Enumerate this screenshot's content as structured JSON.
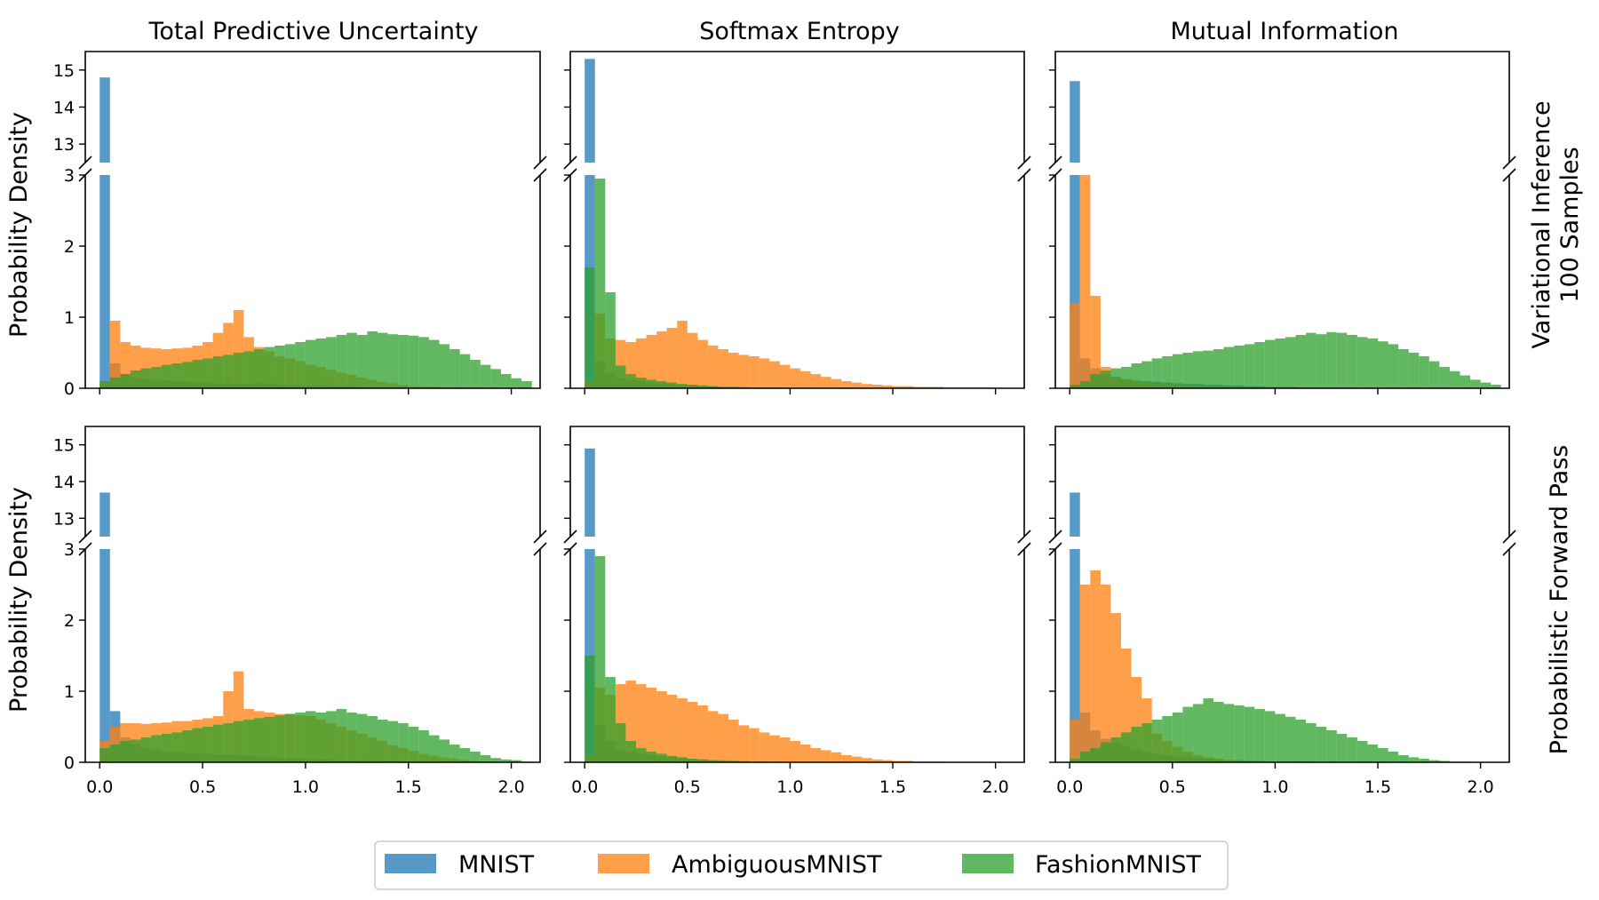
{
  "figure": {
    "col_titles": [
      "Total Predictive Uncertainty",
      "Softmax Entropy",
      "Mutual Information"
    ],
    "row_labels": [
      [
        "Variational Inference",
        "100 Samples"
      ],
      [
        "Probabilistic Forward Pass"
      ]
    ],
    "ylabel": "Probability Density",
    "legend": [
      {
        "name": "MNIST",
        "color": "#1f77b4"
      },
      {
        "name": "AmbiguousMNIST",
        "color": "#ff7f0e"
      },
      {
        "name": "FashionMNIST",
        "color": "#2ca02c"
      }
    ],
    "x_ticks": [
      "0.0",
      "0.5",
      "1.0",
      "1.5",
      "2.0"
    ],
    "lower_y_ticks": [
      "0",
      "1",
      "2",
      "3"
    ],
    "upper_y_ticks": [
      "13",
      "14",
      "15"
    ]
  },
  "chart_data": {
    "type": "bar",
    "subtype": "overlaid histogram with broken y-axis",
    "bin_width": 0.05,
    "bin_start": 0.0,
    "xlim": [
      -0.07,
      2.14
    ],
    "ylim_lower": [
      0,
      3
    ],
    "ylim_upper": [
      12.5,
      15.5
    ],
    "alpha": 0.75,
    "panels": [
      {
        "row": 0,
        "col": 0,
        "series": [
          {
            "name": "MNIST",
            "values": [
              14.8,
              0.35,
              0.2,
              0.15,
              0.13,
              0.12,
              0.11,
              0.1,
              0.09,
              0.08,
              0.08,
              0.07,
              0.07,
              0.06,
              0.06,
              0.08,
              0.07,
              0.05,
              0.05,
              0.04,
              0.04,
              0.04,
              0.03,
              0.03,
              0.03,
              0.02,
              0.02,
              0.02,
              0.02,
              0.02,
              0.01,
              0.01,
              0.01,
              0.01,
              0.01,
              0.01,
              0.01,
              0.0,
              0.0,
              0.0,
              0.0,
              0.0
            ]
          },
          {
            "name": "AmbiguousMNIST",
            "values": [
              0.1,
              0.95,
              0.65,
              0.6,
              0.57,
              0.56,
              0.55,
              0.56,
              0.57,
              0.6,
              0.65,
              0.78,
              0.92,
              1.1,
              0.72,
              0.58,
              0.52,
              0.45,
              0.42,
              0.38,
              0.33,
              0.3,
              0.26,
              0.22,
              0.19,
              0.15,
              0.12,
              0.09,
              0.07,
              0.05,
              0.03,
              0.02,
              0.02,
              0.01,
              0.01,
              0.01,
              0.0,
              0.0,
              0.0,
              0.0,
              0.0,
              0.0
            ]
          },
          {
            "name": "FashionMNIST",
            "values": [
              0.1,
              0.15,
              0.2,
              0.25,
              0.28,
              0.3,
              0.33,
              0.35,
              0.37,
              0.4,
              0.42,
              0.45,
              0.47,
              0.5,
              0.52,
              0.55,
              0.58,
              0.6,
              0.62,
              0.65,
              0.68,
              0.7,
              0.72,
              0.75,
              0.78,
              0.75,
              0.8,
              0.78,
              0.76,
              0.75,
              0.74,
              0.72,
              0.68,
              0.62,
              0.55,
              0.48,
              0.4,
              0.33,
              0.27,
              0.2,
              0.14,
              0.1
            ]
          }
        ]
      },
      {
        "row": 0,
        "col": 1,
        "series": [
          {
            "name": "MNIST",
            "values": [
              15.3,
              0.38,
              0.22,
              0.15,
              0.12,
              0.1,
              0.08,
              0.07,
              0.06,
              0.05,
              0.04,
              0.03,
              0.03,
              0.02,
              0.02,
              0.02,
              0.01,
              0.01,
              0.01,
              0.01,
              0.0,
              0.0,
              0.0,
              0.0,
              0.0,
              0.0,
              0.0,
              0.0,
              0.0,
              0.0,
              0.0,
              0.0,
              0.0,
              0.0,
              0.0,
              0.0,
              0.0,
              0.0,
              0.0,
              0.0,
              0.0,
              0.0
            ]
          },
          {
            "name": "AmbiguousMNIST",
            "values": [
              0.1,
              1.05,
              0.7,
              0.68,
              0.65,
              0.7,
              0.75,
              0.8,
              0.85,
              0.95,
              0.78,
              0.68,
              0.6,
              0.55,
              0.5,
              0.47,
              0.45,
              0.42,
              0.38,
              0.33,
              0.28,
              0.24,
              0.2,
              0.16,
              0.13,
              0.1,
              0.08,
              0.06,
              0.05,
              0.04,
              0.03,
              0.03,
              0.02,
              0.02,
              0.02,
              0.01,
              0.01,
              0.01,
              0.01,
              0.01,
              0.0,
              0.0
            ]
          },
          {
            "name": "FashionMNIST",
            "values": [
              1.7,
              2.95,
              1.35,
              0.32,
              0.2,
              0.15,
              0.12,
              0.1,
              0.08,
              0.06,
              0.05,
              0.04,
              0.03,
              0.02,
              0.02,
              0.01,
              0.01,
              0.01,
              0.01,
              0.0,
              0.0,
              0.0,
              0.0,
              0.0,
              0.0,
              0.0,
              0.0,
              0.0,
              0.0,
              0.0,
              0.0,
              0.0,
              0.0,
              0.0,
              0.0,
              0.0,
              0.0,
              0.0,
              0.0,
              0.0,
              0.0,
              0.0
            ]
          }
        ]
      },
      {
        "row": 0,
        "col": 2,
        "series": [
          {
            "name": "MNIST",
            "values": [
              14.7,
              0.42,
              0.28,
              0.2,
              0.16,
              0.13,
              0.11,
              0.1,
              0.09,
              0.08,
              0.07,
              0.06,
              0.06,
              0.05,
              0.05,
              0.04,
              0.04,
              0.03,
              0.03,
              0.02,
              0.02,
              0.02,
              0.01,
              0.01,
              0.01,
              0.01,
              0.0,
              0.0,
              0.0,
              0.0,
              0.0,
              0.0,
              0.0,
              0.0,
              0.0,
              0.0,
              0.0,
              0.0,
              0.0,
              0.0,
              0.0,
              0.0
            ]
          },
          {
            "name": "AmbiguousMNIST",
            "values": [
              1.2,
              3.0,
              1.3,
              0.3,
              0.15,
              0.12,
              0.1,
              0.08,
              0.06,
              0.05,
              0.04,
              0.03,
              0.02,
              0.02,
              0.01,
              0.01,
              0.01,
              0.0,
              0.0,
              0.0,
              0.0,
              0.0,
              0.0,
              0.0,
              0.0,
              0.0,
              0.0,
              0.0,
              0.0,
              0.0,
              0.0,
              0.0,
              0.0,
              0.0,
              0.0,
              0.0,
              0.0,
              0.0,
              0.0,
              0.0,
              0.0,
              0.0
            ]
          },
          {
            "name": "FashionMNIST",
            "values": [
              0.05,
              0.1,
              0.2,
              0.25,
              0.28,
              0.3,
              0.35,
              0.38,
              0.42,
              0.45,
              0.48,
              0.5,
              0.52,
              0.53,
              0.55,
              0.58,
              0.6,
              0.62,
              0.65,
              0.68,
              0.7,
              0.72,
              0.75,
              0.78,
              0.76,
              0.79,
              0.78,
              0.75,
              0.72,
              0.7,
              0.66,
              0.62,
              0.55,
              0.5,
              0.45,
              0.38,
              0.3,
              0.24,
              0.18,
              0.12,
              0.08,
              0.05
            ]
          }
        ]
      },
      {
        "row": 1,
        "col": 0,
        "series": [
          {
            "name": "MNIST",
            "values": [
              13.7,
              0.72,
              0.35,
              0.25,
              0.2,
              0.18,
              0.15,
              0.14,
              0.13,
              0.12,
              0.12,
              0.11,
              0.11,
              0.1,
              0.09,
              0.08,
              0.07,
              0.06,
              0.06,
              0.05,
              0.05,
              0.04,
              0.04,
              0.03,
              0.03,
              0.03,
              0.02,
              0.02,
              0.02,
              0.02,
              0.01,
              0.01,
              0.01,
              0.01,
              0.01,
              0.01,
              0.0,
              0.0,
              0.0,
              0.0,
              0.0,
              0.0
            ]
          },
          {
            "name": "AmbiguousMNIST",
            "values": [
              0.3,
              0.5,
              0.55,
              0.55,
              0.54,
              0.55,
              0.56,
              0.58,
              0.58,
              0.6,
              0.62,
              0.65,
              1.0,
              1.28,
              0.75,
              0.72,
              0.7,
              0.68,
              0.68,
              0.66,
              0.65,
              0.6,
              0.55,
              0.5,
              0.45,
              0.4,
              0.35,
              0.3,
              0.24,
              0.2,
              0.16,
              0.12,
              0.09,
              0.07,
              0.05,
              0.03,
              0.02,
              0.01,
              0.01,
              0.0,
              0.0,
              0.0
            ]
          },
          {
            "name": "FashionMNIST",
            "values": [
              0.2,
              0.25,
              0.3,
              0.32,
              0.35,
              0.38,
              0.4,
              0.42,
              0.45,
              0.48,
              0.5,
              0.53,
              0.55,
              0.58,
              0.6,
              0.62,
              0.64,
              0.66,
              0.68,
              0.7,
              0.72,
              0.7,
              0.72,
              0.75,
              0.7,
              0.68,
              0.65,
              0.6,
              0.58,
              0.55,
              0.5,
              0.45,
              0.38,
              0.32,
              0.25,
              0.2,
              0.15,
              0.1,
              0.06,
              0.04,
              0.03,
              0.01
            ]
          }
        ]
      },
      {
        "row": 1,
        "col": 1,
        "series": [
          {
            "name": "MNIST",
            "values": [
              14.9,
              0.52,
              0.3,
              0.18,
              0.14,
              0.12,
              0.1,
              0.08,
              0.07,
              0.06,
              0.05,
              0.04,
              0.03,
              0.03,
              0.02,
              0.02,
              0.01,
              0.01,
              0.01,
              0.0,
              0.0,
              0.0,
              0.0,
              0.0,
              0.0,
              0.0,
              0.0,
              0.0,
              0.0,
              0.0,
              0.0,
              0.0,
              0.0,
              0.0,
              0.0,
              0.0,
              0.0,
              0.0,
              0.0,
              0.0,
              0.0,
              0.0
            ]
          },
          {
            "name": "AmbiguousMNIST",
            "values": [
              0.1,
              1.05,
              0.95,
              1.1,
              1.15,
              1.1,
              1.05,
              1.0,
              0.95,
              0.9,
              0.85,
              0.8,
              0.72,
              0.68,
              0.6,
              0.52,
              0.48,
              0.42,
              0.38,
              0.35,
              0.3,
              0.25,
              0.2,
              0.17,
              0.14,
              0.1,
              0.08,
              0.06,
              0.04,
              0.03,
              0.02,
              0.02,
              0.01,
              0.01,
              0.01,
              0.0,
              0.0,
              0.0,
              0.0,
              0.0,
              0.0,
              0.0
            ]
          },
          {
            "name": "FashionMNIST",
            "values": [
              1.5,
              2.9,
              1.2,
              0.55,
              0.3,
              0.2,
              0.15,
              0.12,
              0.09,
              0.07,
              0.05,
              0.04,
              0.03,
              0.02,
              0.02,
              0.01,
              0.01,
              0.01,
              0.0,
              0.0,
              0.0,
              0.0,
              0.0,
              0.0,
              0.0,
              0.0,
              0.0,
              0.0,
              0.0,
              0.0,
              0.0,
              0.0,
              0.0,
              0.0,
              0.0,
              0.0,
              0.0,
              0.0,
              0.0,
              0.0,
              0.0,
              0.0
            ]
          }
        ]
      },
      {
        "row": 1,
        "col": 2,
        "series": [
          {
            "name": "MNIST",
            "values": [
              13.7,
              0.7,
              0.45,
              0.33,
              0.27,
              0.22,
              0.18,
              0.15,
              0.12,
              0.1,
              0.08,
              0.07,
              0.06,
              0.05,
              0.04,
              0.03,
              0.03,
              0.02,
              0.02,
              0.01,
              0.01,
              0.01,
              0.01,
              0.0,
              0.0,
              0.0,
              0.0,
              0.0,
              0.0,
              0.0,
              0.0,
              0.0,
              0.0,
              0.0,
              0.0,
              0.0,
              0.0,
              0.0,
              0.0,
              0.0,
              0.0,
              0.0
            ]
          },
          {
            "name": "AmbiguousMNIST",
            "values": [
              0.6,
              2.5,
              2.7,
              2.5,
              2.1,
              1.6,
              1.2,
              0.9,
              0.4,
              0.3,
              0.22,
              0.15,
              0.1,
              0.07,
              0.05,
              0.03,
              0.02,
              0.01,
              0.01,
              0.0,
              0.0,
              0.0,
              0.0,
              0.0,
              0.0,
              0.0,
              0.0,
              0.0,
              0.0,
              0.0,
              0.0,
              0.0,
              0.0,
              0.0,
              0.0,
              0.0,
              0.0,
              0.0,
              0.0,
              0.0,
              0.0,
              0.0
            ]
          },
          {
            "name": "FashionMNIST",
            "values": [
              0.05,
              0.15,
              0.2,
              0.28,
              0.35,
              0.42,
              0.5,
              0.55,
              0.6,
              0.65,
              0.7,
              0.78,
              0.82,
              0.9,
              0.85,
              0.82,
              0.8,
              0.78,
              0.75,
              0.72,
              0.68,
              0.64,
              0.6,
              0.55,
              0.5,
              0.45,
              0.4,
              0.35,
              0.3,
              0.25,
              0.2,
              0.15,
              0.1,
              0.07,
              0.05,
              0.03,
              0.02,
              0.01,
              0.01,
              0.0,
              0.0,
              0.0
            ]
          }
        ]
      }
    ]
  }
}
